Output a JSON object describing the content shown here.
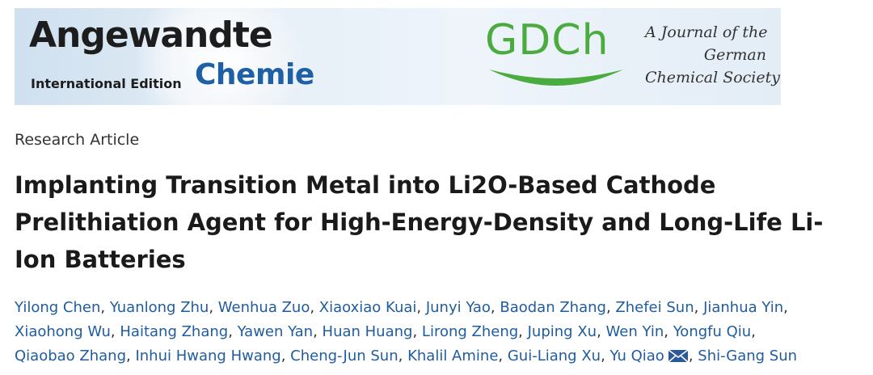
{
  "banner": {
    "journal_name": "Angewandte",
    "journal_edition": "International Edition",
    "journal_subname": "Chemie",
    "society_logo_text": "GDCh",
    "society_tagline_lines": [
      "A Journal of the",
      "German",
      "Chemical Society"
    ],
    "colors": {
      "banner_bg": "#dce8f3",
      "chemie_blue": "#1f5fa6",
      "gdch_green": "#4aab3e"
    }
  },
  "article": {
    "type": "Research Article",
    "title": "Implanting Transition Metal into Li2O-Based Cathode Prelithiation Agent for High-Energy-Density and Long-Life Li-Ion Batteries"
  },
  "authors": [
    "Yilong Chen",
    "Yuanlong Zhu",
    "Wenhua Zuo",
    "Xiaoxiao Kuai",
    "Junyi Yao",
    "Baodan Zhang",
    "Zhefei Sun",
    "Jianhua Yin",
    "Xiaohong Wu",
    "Haitang Zhang",
    "Yawen Yan",
    "Huan Huang",
    "Lirong Zheng",
    "Juping Xu",
    "Wen Yin",
    "Yongfu Qiu",
    "Qiaobao Zhang",
    "Inhui Hwang Hwang",
    "Cheng-Jun Sun",
    "Khalil Amine",
    "Gui-Liang Xu",
    "Yu Qiao",
    "Shi-Gang Sun"
  ],
  "corresponding_author_index": 21,
  "icons": {
    "corresponding": "mail-icon"
  },
  "colors": {
    "author_link": "#1f5c9e",
    "title_text": "#1a1a1a"
  }
}
